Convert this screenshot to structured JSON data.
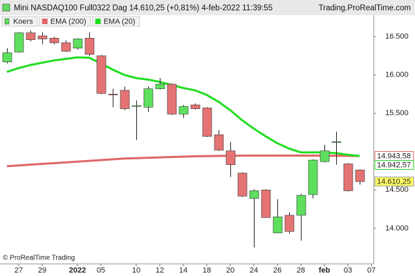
{
  "chart_data": {
    "type": "candlestick",
    "title": "Mini NASDAQ100 Full0322 Dag 14.610,25 (+0,81%) 4-feb-2022 11:39:55",
    "source": "Trading.ProRealTime.com",
    "watermark": "© ProRealTime Trading",
    "categories": [
      null,
      "27",
      null,
      "29",
      null,
      null,
      "2022",
      null,
      "05",
      null,
      null,
      "10",
      null,
      "12",
      null,
      "14",
      null,
      "18",
      null,
      "20",
      null,
      "24",
      null,
      "26",
      null,
      "28",
      null,
      "feb",
      null,
      "03",
      null,
      "07"
    ],
    "ylim": [
      13540,
      16780
    ],
    "yticks": [
      {
        "value": 14000,
        "label": "14.000"
      },
      {
        "value": 14500,
        "label": "14.500"
      },
      {
        "value": 15500,
        "label": "15.500"
      },
      {
        "value": 16000,
        "label": "16.000"
      },
      {
        "value": 16500,
        "label": "16.500"
      }
    ],
    "up_color": "#5ee05e",
    "down_color": "#e57373",
    "series": [
      {
        "name": "Koers",
        "type": "candlestick",
        "open": [
          16170,
          16300,
          16550,
          16510,
          16480,
          16420,
          16350,
          16480,
          16250,
          15750,
          15800,
          15590,
          15580,
          15820,
          15880,
          15490,
          15610,
          15570,
          15220,
          15010,
          14720,
          14390,
          14500,
          13940,
          14170,
          14170,
          14440,
          14870,
          15120,
          14840,
          14760,
          null
        ],
        "high": [
          16350,
          16560,
          16580,
          16560,
          16500,
          16450,
          16480,
          16560,
          16260,
          15820,
          15850,
          15670,
          15850,
          15960,
          15890,
          15610,
          15630,
          15580,
          15280,
          15130,
          14730,
          14510,
          14510,
          14380,
          14210,
          14450,
          14900,
          15090,
          15260,
          14850,
          14770,
          null
        ],
        "low": [
          16150,
          16290,
          16440,
          16400,
          16400,
          16300,
          16330,
          16250,
          15750,
          15580,
          15540,
          15150,
          15520,
          15810,
          15480,
          15440,
          15550,
          15190,
          15010,
          14670,
          14410,
          13750,
          14140,
          13940,
          13930,
          13840,
          14390,
          14860,
          14830,
          14480,
          14570,
          null
        ],
        "close": [
          16290,
          16550,
          16460,
          16470,
          16420,
          16310,
          16470,
          16270,
          15760,
          15740,
          15560,
          15600,
          15820,
          15880,
          15490,
          15590,
          15560,
          15200,
          15020,
          14830,
          14420,
          14490,
          14140,
          14150,
          13960,
          14430,
          14890,
          15010,
          15130,
          14490,
          14610.25,
          null
        ],
        "value_labels": [
          null,
          null,
          null,
          null,
          null,
          null,
          null,
          null,
          null,
          null,
          null,
          null,
          null,
          null,
          null,
          null,
          null,
          null,
          null,
          null,
          null,
          null,
          null,
          null,
          null,
          null,
          null,
          null,
          null,
          null,
          "14.610,25",
          null
        ]
      },
      {
        "name": "EMA (200)",
        "type": "line",
        "color": "#e06666",
        "values": [
          14810,
          14820,
          14830,
          14840,
          14850,
          14860,
          14870,
          14880,
          14890,
          14900,
          14910,
          14915,
          14920,
          14925,
          14930,
          14935,
          14940,
          14942,
          14944,
          14946,
          14948,
          14948,
          14948,
          14948,
          14948,
          14948,
          14948,
          14947,
          14946,
          14945,
          14943.58,
          null
        ],
        "value_labels": [
          null,
          null,
          null,
          null,
          null,
          null,
          null,
          null,
          null,
          null,
          null,
          null,
          null,
          null,
          null,
          null,
          null,
          null,
          null,
          null,
          null,
          null,
          null,
          null,
          null,
          null,
          null,
          null,
          null,
          null,
          "14.943,58",
          null
        ]
      },
      {
        "name": "EMA (20)",
        "type": "line",
        "color": "#22dd22",
        "values": [
          16040,
          16090,
          16130,
          16160,
          16190,
          16210,
          16230,
          16225,
          16150,
          16070,
          16000,
          15960,
          15940,
          15910,
          15870,
          15830,
          15800,
          15740,
          15650,
          15540,
          15410,
          15300,
          15200,
          15110,
          15040,
          14990,
          14990,
          14990,
          14980,
          14960,
          14942.57,
          null
        ],
        "value_labels": [
          null,
          null,
          null,
          null,
          null,
          null,
          null,
          null,
          null,
          null,
          null,
          null,
          null,
          null,
          null,
          null,
          null,
          null,
          null,
          null,
          null,
          null,
          null,
          null,
          null,
          null,
          null,
          null,
          null,
          null,
          "14.942,57",
          null
        ]
      }
    ]
  }
}
